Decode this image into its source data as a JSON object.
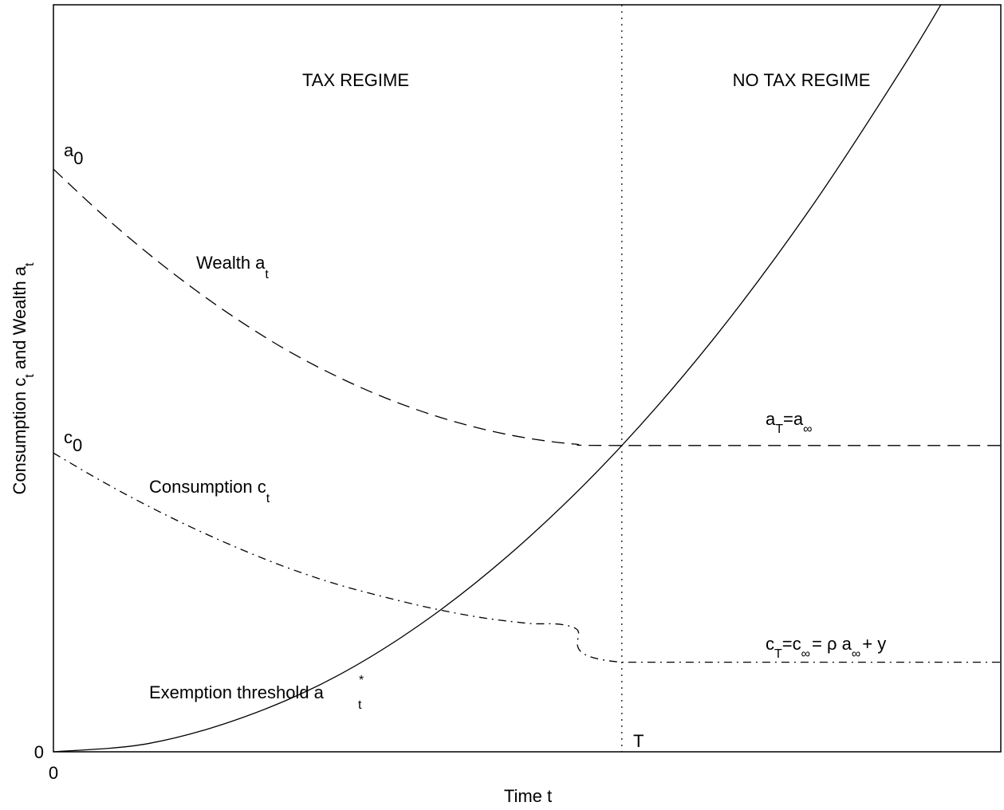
{
  "chart_data": {
    "type": "line",
    "title": "",
    "xlabel": "Time t",
    "ylabel": {
      "base": "Consumption c",
      "sub1": "t",
      "mid": " and Wealth a",
      "sub2": "t"
    },
    "xlim": [
      0,
      1
    ],
    "ylim": [
      0,
      1
    ],
    "x_ticks": [
      "0"
    ],
    "y_ticks": [
      "0"
    ],
    "grid": false,
    "T": 0.6,
    "series": [
      {
        "key": "wealth",
        "style": "dashed",
        "x": [
          0,
          0.05,
          0.1,
          0.15,
          0.2,
          0.25,
          0.3,
          0.35,
          0.4,
          0.45,
          0.5,
          0.55,
          0.6,
          1.0
        ],
        "y": [
          0.78,
          0.721,
          0.667,
          0.618,
          0.574,
          0.535,
          0.502,
          0.474,
          0.451,
          0.433,
          0.42,
          0.412,
          0.41,
          0.41
        ]
      },
      {
        "key": "consumption",
        "style": "dashdot",
        "x": [
          0,
          0.05,
          0.1,
          0.15,
          0.2,
          0.25,
          0.3,
          0.35,
          0.4,
          0.45,
          0.5,
          0.55,
          0.6,
          1.0
        ],
        "y": [
          0.4,
          0.363,
          0.329,
          0.298,
          0.27,
          0.245,
          0.224,
          0.207,
          0.192,
          0.18,
          0.172,
          0.166,
          0.12,
          0.12
        ]
      },
      {
        "key": "threshold",
        "style": "solid",
        "x": [
          0,
          0.1,
          0.2,
          0.3,
          0.4,
          0.5,
          0.6,
          0.7,
          0.8,
          0.9,
          0.955
        ],
        "y": [
          0,
          0.011,
          0.046,
          0.102,
          0.182,
          0.285,
          0.41,
          0.558,
          0.729,
          0.923,
          1.04
        ]
      }
    ],
    "annotations": {
      "tax_regime": "TAX REGIME",
      "no_tax_regime": "NO TAX REGIME",
      "a0": {
        "base": "a",
        "sub": "0"
      },
      "c0": {
        "base": "c",
        "sub": "0"
      },
      "wealth": {
        "base": "Wealth a",
        "sub": "t"
      },
      "consumption": {
        "base": "Consumption c",
        "sub": "t"
      },
      "threshold": {
        "base": "Exemption threshold a",
        "sup": "*",
        "sub": "t"
      },
      "T": "T",
      "aT": {
        "b1": "a",
        "s1": "T",
        "b2": "=a",
        "s2": "∞"
      },
      "cT": {
        "b1": "c",
        "s1": "T",
        "b2": "=c",
        "s2": "∞",
        "b3": "= ρ a",
        "s3": "∞",
        "b4": "+ y"
      }
    }
  }
}
